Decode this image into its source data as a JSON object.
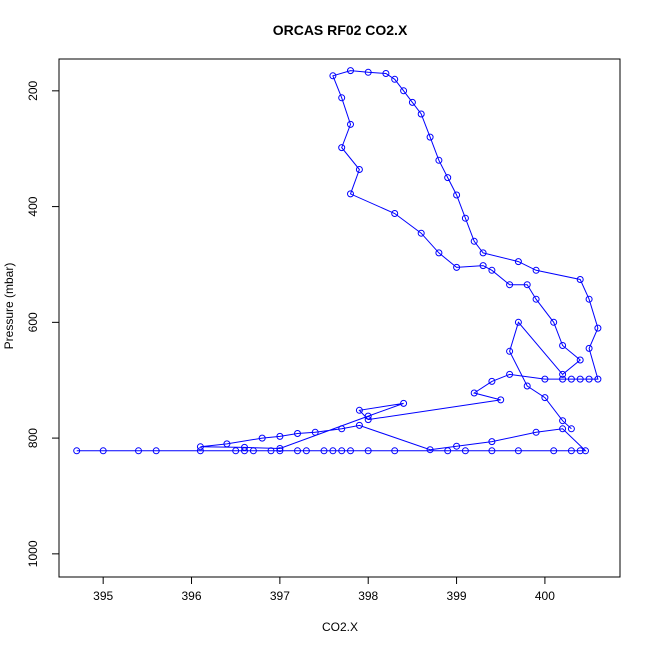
{
  "chart_data": {
    "type": "line",
    "title": "ORCAS RF02 CO2.X",
    "xlabel": "CO2.X",
    "ylabel": "Pressure (mbar)",
    "xlim": [
      394.5,
      400.85
    ],
    "ylim": [
      1040,
      145
    ],
    "y_reversed": true,
    "grid": false,
    "legend": "none",
    "x_ticks": [
      395,
      396,
      397,
      398,
      399,
      400
    ],
    "y_ticks": [
      200,
      400,
      600,
      800,
      1000
    ],
    "x_tick_labels": [
      "395",
      "396",
      "397",
      "398",
      "399",
      "400"
    ],
    "y_tick_labels": [
      "200",
      "400",
      "600",
      "800",
      "1000"
    ],
    "line_color": "#0000ff",
    "marker": "open-circle",
    "series": [
      {
        "name": "",
        "points": [
          [
            394.7,
            822
          ],
          [
            395.0,
            822
          ],
          [
            395.4,
            822
          ],
          [
            395.6,
            822
          ],
          [
            396.1,
            822
          ],
          [
            396.5,
            822
          ],
          [
            396.6,
            822
          ],
          [
            396.7,
            822
          ],
          [
            396.9,
            822
          ],
          [
            397.0,
            822
          ],
          [
            397.2,
            822
          ],
          [
            397.3,
            822
          ],
          [
            397.5,
            822
          ],
          [
            397.6,
            822
          ],
          [
            397.7,
            822
          ],
          [
            397.8,
            822
          ],
          [
            398.0,
            822
          ],
          [
            398.3,
            822
          ],
          [
            398.9,
            822
          ],
          [
            399.1,
            822
          ],
          [
            399.4,
            822
          ],
          [
            399.7,
            822
          ],
          [
            400.1,
            822
          ],
          [
            400.3,
            822
          ],
          [
            400.4,
            822
          ],
          [
            400.46,
            822
          ],
          [
            400.2,
            784
          ],
          [
            399.9,
            790
          ],
          [
            399.4,
            806
          ],
          [
            399.0,
            814
          ],
          [
            398.7,
            820
          ],
          [
            397.9,
            778
          ],
          [
            397.7,
            784
          ],
          [
            397.4,
            790
          ],
          [
            397.2,
            792
          ],
          [
            397.0,
            797
          ],
          [
            396.8,
            800
          ],
          [
            396.4,
            810
          ],
          [
            396.1,
            815
          ],
          [
            396.6,
            816
          ],
          [
            397.0,
            818
          ],
          [
            398.0,
            762
          ],
          [
            398.4,
            740
          ],
          [
            397.9,
            752
          ],
          [
            398.0,
            768
          ],
          [
            399.5,
            734
          ],
          [
            399.2,
            722
          ],
          [
            399.4,
            702
          ],
          [
            399.6,
            690
          ],
          [
            400.0,
            698
          ],
          [
            400.2,
            698
          ],
          [
            400.3,
            698
          ],
          [
            400.4,
            698
          ],
          [
            400.5,
            698
          ],
          [
            400.6,
            698
          ],
          [
            400.5,
            645
          ],
          [
            400.6,
            610
          ],
          [
            400.5,
            560
          ],
          [
            400.4,
            526
          ],
          [
            399.9,
            510
          ],
          [
            399.7,
            495
          ],
          [
            399.3,
            480
          ],
          [
            399.2,
            460
          ],
          [
            399.1,
            420
          ],
          [
            399.0,
            380
          ],
          [
            398.9,
            350
          ],
          [
            398.8,
            320
          ],
          [
            398.7,
            280
          ],
          [
            398.6,
            240
          ],
          [
            398.5,
            220
          ],
          [
            398.4,
            200
          ],
          [
            398.3,
            180
          ],
          [
            398.2,
            170
          ],
          [
            398.0,
            168
          ],
          [
            397.8,
            165
          ],
          [
            397.6,
            174
          ],
          [
            397.7,
            212
          ],
          [
            397.8,
            258
          ],
          [
            397.7,
            298
          ],
          [
            397.9,
            336
          ],
          [
            397.8,
            378
          ],
          [
            398.3,
            412
          ],
          [
            398.6,
            446
          ],
          [
            398.8,
            480
          ],
          [
            399.0,
            505
          ],
          [
            399.3,
            502
          ],
          [
            399.4,
            510
          ],
          [
            399.6,
            535
          ],
          [
            399.8,
            535
          ],
          [
            399.9,
            560
          ],
          [
            400.1,
            600
          ],
          [
            400.2,
            640
          ],
          [
            400.4,
            665
          ],
          [
            400.2,
            690
          ],
          [
            399.7,
            600
          ],
          [
            399.6,
            650
          ],
          [
            399.8,
            710
          ],
          [
            400.0,
            730
          ],
          [
            400.2,
            770
          ],
          [
            400.3,
            784
          ]
        ]
      }
    ]
  }
}
